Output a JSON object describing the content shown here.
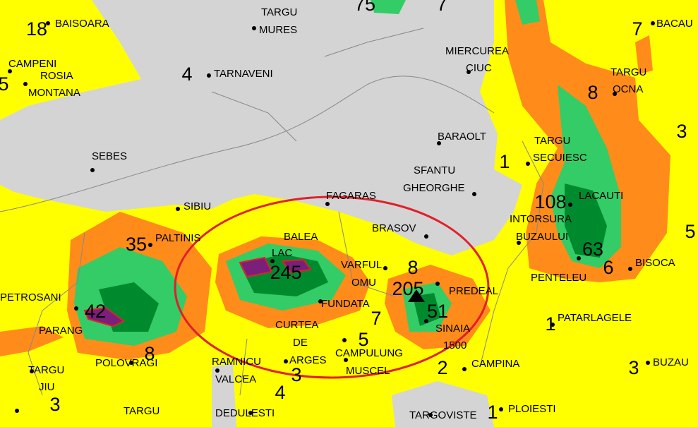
{
  "places": [
    "BAISOARA",
    "TARGU",
    "MURES",
    "CAMPENI",
    "ROSIA",
    "MONTANA",
    "TARNAVENI",
    "MIERCUREA",
    "CIUC",
    "BACAU",
    "TARGU",
    "OCNA",
    "BARAOLT",
    "TARGU",
    "SECUIESC",
    "SEBES",
    "SFANTU",
    "GHEORGHE",
    "FAGARAS",
    "LACAUTI",
    "SIBIU",
    "BRASOV",
    "INTORSURA",
    "BUZAULUI",
    "PALTINIS",
    "BALEA",
    "LAC",
    "VARFUL",
    "OMU",
    "PREDEAL",
    "BISOCA",
    "PENTELEU",
    "PETROSANI",
    "FUNDATA",
    "SINAIA",
    "PATARLAGELE",
    "CURTEA",
    "DE",
    "ARGES",
    "PARANG",
    "1500",
    "CAMPULUNG",
    "MUSCEL",
    "RAMNICU",
    "VALCEA",
    "CAMPINA",
    "BUZAU",
    "POLOVRAGI",
    "TARGU",
    "JIU",
    "DEDULESTI",
    "TARGOVISTE",
    "PLOIESTI",
    "TARGU"
  ],
  "values": [
    "18",
    "75",
    "7",
    "7",
    "5",
    "4",
    "8",
    "3",
    "1",
    "108",
    "5",
    "63",
    "35",
    "245",
    "8",
    "205",
    "6",
    "51",
    "42",
    "7",
    "5",
    "1",
    "8",
    "3",
    "2",
    "3",
    "4",
    "3",
    "1"
  ]
}
